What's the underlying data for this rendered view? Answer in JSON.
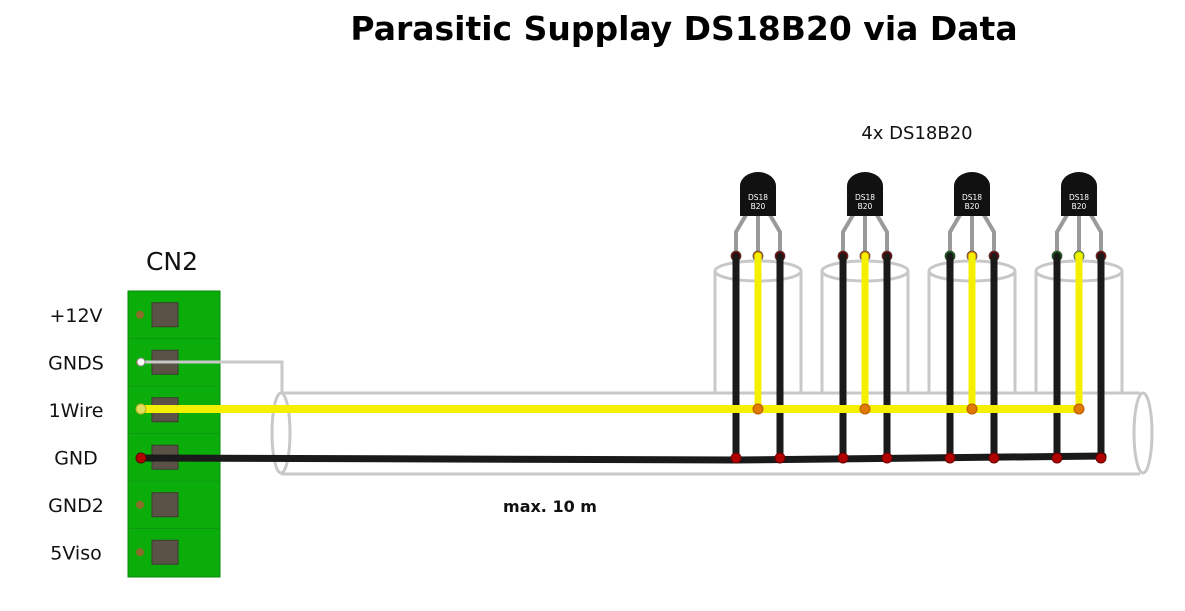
{
  "title": "Parasitic Supplay DS18B20 via Data",
  "connector": {
    "name": "CN2",
    "pins": [
      "+12V",
      "GNDS",
      "1Wire",
      "GND",
      "GND2",
      "5Viso"
    ]
  },
  "sensors": {
    "count_label": "4x DS18B20",
    "chip_label_line1": "DS18",
    "chip_label_line2": "B20",
    "count": 4
  },
  "cable": {
    "length_label": "max. 10 m"
  },
  "colors": {
    "terminal_green": "#0aad0a",
    "data_wire": "#f4f000",
    "gnd_wire": "#1a1a1a",
    "shield": "#c8c8c8",
    "sensor_body": "#111111"
  }
}
